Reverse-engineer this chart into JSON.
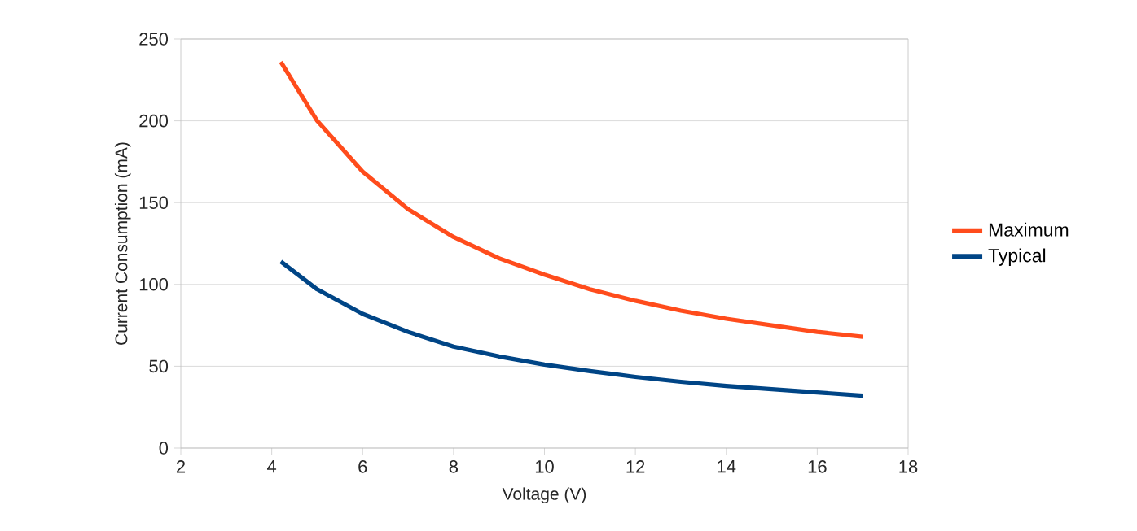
{
  "chart_data": {
    "type": "line",
    "xlabel": "Voltage (V)",
    "ylabel": "Current Consumption (mA)",
    "x": [
      4.2,
      5,
      6,
      7,
      8,
      9,
      10,
      11,
      12,
      13,
      14,
      15,
      16,
      17
    ],
    "series": [
      {
        "name": "Maximum",
        "color": "#ff4c1c",
        "values": [
          236,
          200,
          169,
          146,
          129,
          116,
          106,
          97,
          90,
          84,
          79,
          75,
          71,
          68
        ]
      },
      {
        "name": "Typical",
        "color": "#004586",
        "values": [
          114,
          97,
          82,
          71,
          62,
          56,
          51,
          47,
          43.5,
          40.5,
          38,
          36,
          34,
          32
        ]
      }
    ],
    "xlim": [
      2,
      18
    ],
    "ylim": [
      0,
      250
    ],
    "xticks": [
      2,
      4,
      6,
      8,
      10,
      12,
      14,
      16,
      18
    ],
    "yticks": [
      0,
      50,
      100,
      150,
      200,
      250
    ],
    "grid": "y",
    "legend": "right",
    "marker": "none",
    "line_style": "solid"
  }
}
